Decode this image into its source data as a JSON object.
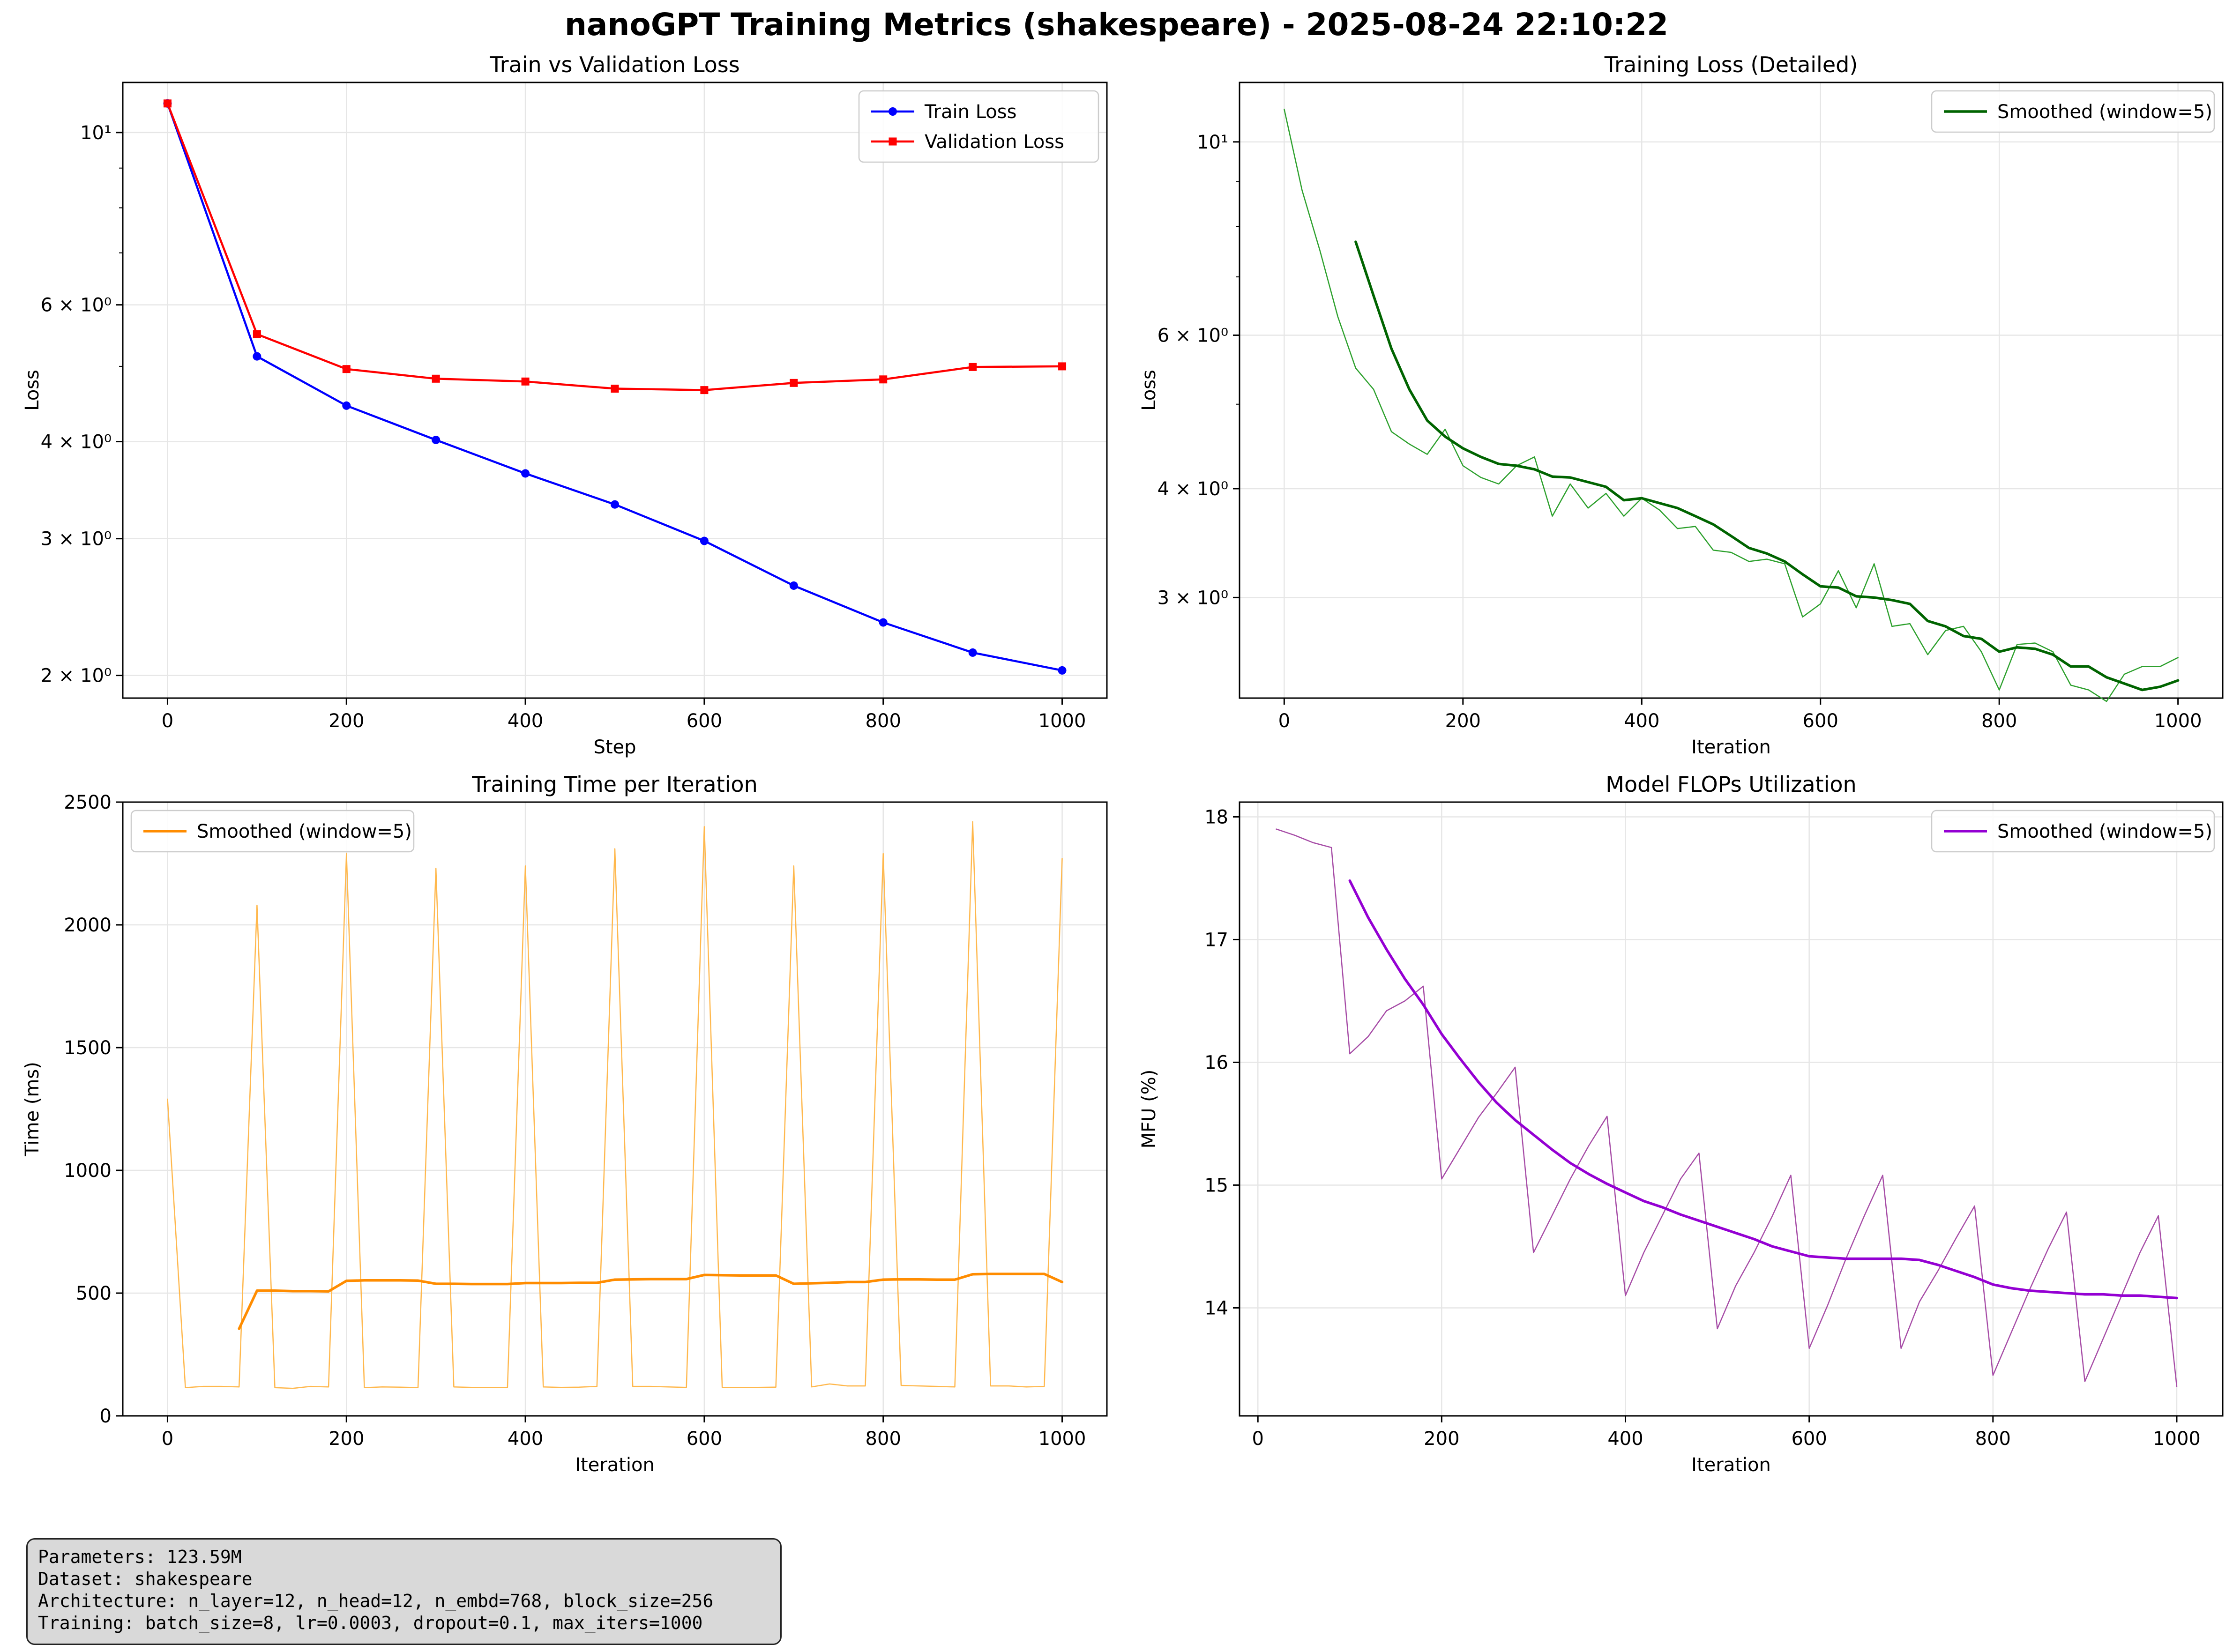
{
  "title": "nanoGPT Training Metrics (shakespeare) - 2025-08-24 22:10:22",
  "colors": {
    "train": "#0000ff",
    "val": "#ff0000",
    "loss_raw": "#2ca02c",
    "loss_smooth": "#006400",
    "time_raw": "#ffb84d",
    "time_smooth": "#ff8c00",
    "mfu_raw": "#a64ca6",
    "mfu_smooth": "#9400d3",
    "grid": "#e6e6e6",
    "info_bg": "#d9d9d9"
  },
  "info": {
    "line1": "Parameters: 123.59M",
    "line2": "Dataset: shakespeare",
    "line3": "Architecture: n_layer=12, n_head=12, n_embd=768, block_size=256",
    "line4": "Training: batch_size=8, lr=0.0003, dropout=0.1, max_iters=1000"
  },
  "chart_data": [
    {
      "id": "loss",
      "type": "line",
      "title": "Train vs Validation Loss",
      "xlabel": "Step",
      "ylabel": "Loss",
      "yscale": "log",
      "xlim": [
        -50,
        1050
      ],
      "ylim": [
        1.87,
        11.6
      ],
      "grid": true,
      "legend": "top-right",
      "x_ticks": [
        0,
        200,
        400,
        600,
        800,
        1000
      ],
      "y_ticks": [
        {
          "value": 2,
          "label": "2 × 10⁰"
        },
        {
          "value": 3,
          "label": "3 × 10⁰"
        },
        {
          "value": 4,
          "label": "4 × 10⁰"
        },
        {
          "value": 6,
          "label": "6 × 10⁰"
        },
        {
          "value": 10,
          "label": "10¹"
        }
      ],
      "series": [
        {
          "name": "Train Loss",
          "color_key": "train",
          "width": 4.5,
          "marker": "circle",
          "x": [
            0,
            100,
            200,
            300,
            400,
            500,
            600,
            700,
            800,
            900,
            1000
          ],
          "y": [
            10.9,
            5.15,
            4.45,
            4.02,
            3.64,
            3.32,
            2.98,
            2.61,
            2.34,
            2.14,
            2.03
          ]
        },
        {
          "name": "Validation Loss",
          "color_key": "val",
          "width": 4.5,
          "marker": "square",
          "x": [
            0,
            100,
            200,
            300,
            400,
            500,
            600,
            700,
            800,
            900,
            1000
          ],
          "y": [
            10.9,
            5.5,
            4.96,
            4.82,
            4.78,
            4.68,
            4.66,
            4.76,
            4.81,
            4.99,
            5.0
          ]
        }
      ]
    },
    {
      "id": "loss-detail",
      "type": "line",
      "title": "Training Loss (Detailed)",
      "xlabel": "Iteration",
      "ylabel": "Loss",
      "yscale": "log",
      "xlim": [
        -50,
        1050
      ],
      "ylim": [
        2.3,
        11.7
      ],
      "grid": true,
      "legend": "top-right",
      "x_ticks": [
        0,
        200,
        400,
        600,
        800,
        1000
      ],
      "y_ticks": [
        {
          "value": 3,
          "label": "3 × 10⁰"
        },
        {
          "value": 4,
          "label": "4 × 10⁰"
        },
        {
          "value": 6,
          "label": "6 × 10⁰"
        },
        {
          "value": 10,
          "label": "10¹"
        }
      ],
      "series": [
        {
          "name": "",
          "color_key": "loss_raw",
          "width": 2.5,
          "marker": "none",
          "x": [
            0,
            20,
            40,
            60,
            80,
            100,
            120,
            140,
            160,
            180,
            200,
            220,
            240,
            260,
            280,
            300,
            320,
            340,
            360,
            380,
            400,
            420,
            440,
            460,
            480,
            500,
            520,
            540,
            560,
            580,
            600,
            620,
            640,
            660,
            680,
            700,
            720,
            740,
            760,
            780,
            800,
            820,
            840,
            860,
            880,
            900,
            920,
            940,
            960,
            980,
            1000
          ],
          "y": [
            10.9,
            8.8,
            7.5,
            6.3,
            5.5,
            5.2,
            4.65,
            4.5,
            4.38,
            4.68,
            4.25,
            4.12,
            4.05,
            4.25,
            4.35,
            3.72,
            4.05,
            3.8,
            3.95,
            3.72,
            3.9,
            3.78,
            3.6,
            3.62,
            3.4,
            3.38,
            3.3,
            3.32,
            3.28,
            2.85,
            2.95,
            3.22,
            2.92,
            3.28,
            2.78,
            2.8,
            2.58,
            2.75,
            2.78,
            2.6,
            2.35,
            2.65,
            2.66,
            2.6,
            2.38,
            2.35,
            2.28,
            2.45,
            2.5,
            2.5,
            2.56
          ]
        },
        {
          "name": "Smoothed (window=5)",
          "color_key": "loss_smooth",
          "width": 5.5,
          "marker": "none",
          "x": [
            80,
            100,
            120,
            140,
            160,
            180,
            200,
            220,
            240,
            260,
            280,
            300,
            320,
            340,
            360,
            380,
            400,
            420,
            440,
            460,
            480,
            500,
            520,
            540,
            560,
            580,
            600,
            620,
            640,
            660,
            680,
            700,
            720,
            740,
            760,
            780,
            800,
            820,
            840,
            860,
            880,
            900,
            920,
            940,
            960,
            980,
            1000
          ],
          "y": [
            7.68,
            6.66,
            5.79,
            5.2,
            4.79,
            4.59,
            4.45,
            4.35,
            4.27,
            4.25,
            4.21,
            4.13,
            4.12,
            4.07,
            4.02,
            3.88,
            3.9,
            3.85,
            3.8,
            3.72,
            3.64,
            3.53,
            3.42,
            3.37,
            3.3,
            3.19,
            3.09,
            3.08,
            3.01,
            3.0,
            2.98,
            2.95,
            2.82,
            2.78,
            2.71,
            2.69,
            2.6,
            2.63,
            2.62,
            2.58,
            2.5,
            2.5,
            2.43,
            2.39,
            2.35,
            2.37,
            2.41
          ]
        }
      ]
    },
    {
      "id": "time",
      "type": "line",
      "title": "Training Time per Iteration",
      "xlabel": "Iteration",
      "ylabel": "Time (ms)",
      "yscale": "linear",
      "xlim": [
        -50,
        1050
      ],
      "ylim": [
        0,
        2500
      ],
      "grid": true,
      "legend": "top-left",
      "x_ticks": [
        0,
        200,
        400,
        600,
        800,
        1000
      ],
      "y_ticks": [
        {
          "value": 0,
          "label": "0"
        },
        {
          "value": 500,
          "label": "500"
        },
        {
          "value": 1000,
          "label": "1000"
        },
        {
          "value": 1500,
          "label": "1500"
        },
        {
          "value": 2000,
          "label": "2000"
        },
        {
          "value": 2500,
          "label": "2500"
        }
      ],
      "series": [
        {
          "name": "",
          "color_key": "time_raw",
          "width": 2.5,
          "marker": "none",
          "x": [
            0,
            20,
            40,
            60,
            80,
            100,
            120,
            140,
            160,
            180,
            200,
            220,
            240,
            260,
            280,
            300,
            320,
            340,
            360,
            380,
            400,
            420,
            440,
            460,
            480,
            500,
            520,
            540,
            560,
            580,
            600,
            620,
            640,
            660,
            680,
            700,
            720,
            740,
            760,
            780,
            800,
            820,
            840,
            860,
            880,
            900,
            920,
            940,
            960,
            980,
            1000
          ],
          "y": [
            1290,
            115,
            120,
            120,
            118,
            2080,
            115,
            112,
            120,
            118,
            2290,
            115,
            118,
            117,
            115,
            2230,
            118,
            116,
            116,
            116,
            2240,
            118,
            116,
            117,
            120,
            2310,
            120,
            120,
            118,
            116,
            2400,
            116,
            116,
            116,
            117,
            2240,
            118,
            130,
            122,
            122,
            2290,
            124,
            122,
            120,
            118,
            2420,
            122,
            122,
            118,
            120,
            2270
          ]
        },
        {
          "name": "Smoothed (window=5)",
          "color_key": "time_smooth",
          "width": 5.5,
          "marker": "none",
          "x": [
            80,
            100,
            120,
            140,
            160,
            180,
            200,
            220,
            240,
            260,
            280,
            300,
            320,
            340,
            360,
            380,
            400,
            420,
            440,
            460,
            480,
            500,
            520,
            540,
            560,
            580,
            600,
            620,
            640,
            660,
            680,
            700,
            720,
            740,
            760,
            780,
            800,
            820,
            840,
            860,
            880,
            900,
            920,
            940,
            960,
            980,
            1000
          ],
          "y": [
            355,
            510,
            510,
            508,
            508,
            507,
            550,
            552,
            552,
            552,
            551,
            538,
            538,
            537,
            537,
            537,
            541,
            541,
            541,
            542,
            542,
            555,
            556,
            557,
            557,
            557,
            574,
            573,
            572,
            572,
            572,
            538,
            540,
            542,
            545,
            545,
            555,
            556,
            556,
            555,
            555,
            577,
            578,
            578,
            578,
            578,
            545
          ]
        }
      ]
    },
    {
      "id": "mfu",
      "type": "line",
      "title": "Model FLOPs Utilization",
      "xlabel": "Iteration",
      "ylabel": "MFU (%)",
      "yscale": "linear",
      "xlim": [
        -20,
        1050
      ],
      "ylim": [
        13.12,
        18.12
      ],
      "grid": true,
      "legend": "top-right",
      "x_ticks": [
        0,
        200,
        400,
        600,
        800,
        1000
      ],
      "y_ticks": [
        {
          "value": 14,
          "label": "14"
        },
        {
          "value": 15,
          "label": "15"
        },
        {
          "value": 16,
          "label": "16"
        },
        {
          "value": 17,
          "label": "17"
        },
        {
          "value": 18,
          "label": "18"
        }
      ],
      "series": [
        {
          "name": "",
          "color_key": "mfu_raw",
          "width": 2.5,
          "marker": "none",
          "x": [
            20,
            40,
            60,
            80,
            100,
            120,
            140,
            160,
            180,
            200,
            220,
            240,
            260,
            280,
            300,
            320,
            340,
            360,
            380,
            400,
            420,
            440,
            460,
            480,
            500,
            520,
            540,
            560,
            580,
            600,
            620,
            640,
            660,
            680,
            700,
            720,
            740,
            760,
            780,
            800,
            820,
            840,
            860,
            880,
            900,
            920,
            940,
            960,
            980,
            1000
          ],
          "y": [
            17.9,
            17.85,
            17.79,
            17.75,
            16.07,
            16.21,
            16.42,
            16.5,
            16.62,
            15.05,
            15.3,
            15.55,
            15.75,
            15.96,
            14.45,
            14.75,
            15.05,
            15.32,
            15.56,
            14.1,
            14.45,
            14.75,
            15.05,
            15.26,
            13.83,
            14.18,
            14.45,
            14.75,
            15.08,
            13.67,
            14.02,
            14.4,
            14.75,
            15.08,
            13.67,
            14.05,
            14.3,
            14.57,
            14.83,
            13.45,
            13.8,
            14.15,
            14.48,
            14.78,
            13.4,
            13.75,
            14.1,
            14.45,
            14.75,
            13.36
          ]
        },
        {
          "name": "Smoothed (window=5)",
          "color_key": "mfu_smooth",
          "width": 5.5,
          "marker": "none",
          "x": [
            100,
            120,
            140,
            160,
            180,
            200,
            220,
            240,
            260,
            280,
            300,
            320,
            340,
            360,
            380,
            400,
            420,
            440,
            460,
            480,
            500,
            520,
            540,
            560,
            580,
            600,
            620,
            640,
            660,
            680,
            700,
            720,
            740,
            760,
            780,
            800,
            820,
            840,
            860,
            880,
            900,
            920,
            940,
            960,
            980,
            1000
          ],
          "y": [
            17.48,
            17.18,
            16.92,
            16.68,
            16.47,
            16.23,
            16.03,
            15.84,
            15.67,
            15.53,
            15.41,
            15.29,
            15.18,
            15.09,
            15.01,
            14.94,
            14.87,
            14.82,
            14.76,
            14.71,
            14.66,
            14.61,
            14.56,
            14.5,
            14.46,
            14.42,
            14.41,
            14.4,
            14.4,
            14.4,
            14.4,
            14.39,
            14.35,
            14.3,
            14.25,
            14.19,
            14.16,
            14.14,
            14.13,
            14.12,
            14.11,
            14.11,
            14.1,
            14.1,
            14.09,
            14.08
          ]
        }
      ]
    }
  ]
}
